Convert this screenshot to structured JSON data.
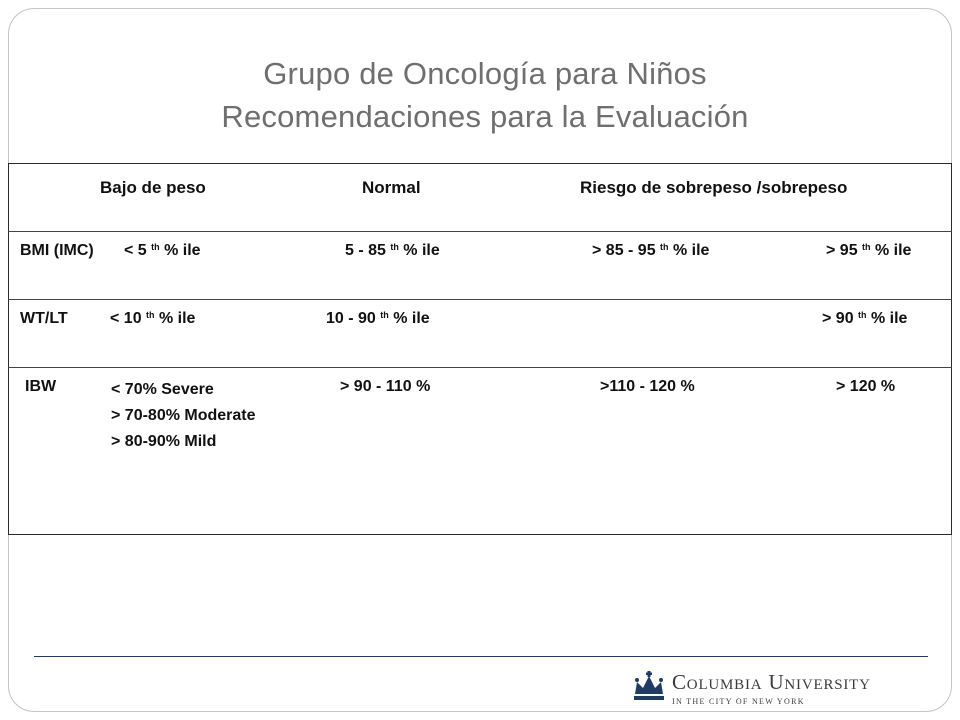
{
  "title": {
    "line1": "Grupo de Oncología para Niños",
    "line2": "Recomendaciones para la Evaluación"
  },
  "table": {
    "headers": {
      "col1": "Bajo de peso",
      "col2": "Normal",
      "col3": "Riesgo de sobrepeso /sobrepeso"
    },
    "bmi": {
      "label": "BMI (IMC)",
      "c1_pre": "<   5 ",
      "c1_post": " % ile",
      "c2_pre": "5 - 85 ",
      "c2_post": " % ile",
      "c3_pre": "> 85  -  95 ",
      "c3_post": " % ile",
      "c4_pre": "> 95 ",
      "c4_post": " % ile"
    },
    "wtlt": {
      "label": "WT/LT",
      "c1_pre": "<  10 ",
      "c1_post": " % ile",
      "c2_pre": "10 -  90 ",
      "c2_post": " % ile",
      "c4_pre": "> 90 ",
      "c4_post": " % ile"
    },
    "ibw": {
      "label": "IBW",
      "c1_line1": "< 70%  Severe",
      "c1_line2": "> 70-80% Moderate",
      "c1_line3": "> 80-90% Mild",
      "c2": "> 90 - 110 %",
      "c3": ">110 - 120 %",
      "c4": "> 120 %"
    },
    "superscript": "th"
  },
  "logo": {
    "name": "Columbia University",
    "sub": "IN THE CITY OF NEW YORK",
    "crown_color": "#1f3a63"
  }
}
